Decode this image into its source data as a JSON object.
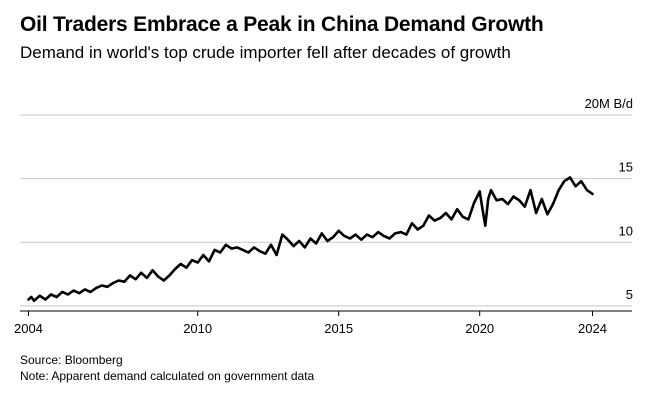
{
  "header": {
    "title": "Oil Traders Embrace a Peak in China Demand Growth",
    "subtitle": "Demand in world's top crude importer fell after decades of growth"
  },
  "footer": {
    "source": "Source: Bloomberg",
    "note": "Note: Apparent demand calculated on government data"
  },
  "chart_data": {
    "type": "line",
    "title": "Oil Traders Embrace a Peak in China Demand Growth",
    "subtitle": "Demand in world's top crude importer fell after decades of growth",
    "xlabel": "",
    "ylabel": "",
    "unit_label": "20M B/d",
    "xlim": [
      2003.7,
      2025.4
    ],
    "ylim": [
      4.6,
      20
    ],
    "y_ticks": [
      5,
      10,
      15,
      20
    ],
    "y_tick_labels": [
      "5",
      "10",
      "15",
      "20M B/d"
    ],
    "x_ticks": [
      2004,
      2010,
      2015,
      2020,
      2024
    ],
    "x_tick_labels": [
      "2004",
      "2010",
      "2015",
      "2020",
      "2024"
    ],
    "grid": true,
    "legend": "none",
    "series": [
      {
        "color": "#000000",
        "x": [
          2004.0,
          2004.1,
          2004.2,
          2004.4,
          2004.6,
          2004.8,
          2005.0,
          2005.2,
          2005.4,
          2005.6,
          2005.8,
          2006.0,
          2006.2,
          2006.4,
          2006.6,
          2006.8,
          2007.0,
          2007.2,
          2007.4,
          2007.6,
          2007.8,
          2008.0,
          2008.2,
          2008.4,
          2008.6,
          2008.8,
          2009.0,
          2009.2,
          2009.4,
          2009.6,
          2009.8,
          2010.0,
          2010.2,
          2010.4,
          2010.6,
          2010.8,
          2011.0,
          2011.2,
          2011.4,
          2011.6,
          2011.8,
          2012.0,
          2012.2,
          2012.4,
          2012.6,
          2012.8,
          2013.0,
          2013.2,
          2013.4,
          2013.6,
          2013.8,
          2014.0,
          2014.2,
          2014.4,
          2014.6,
          2014.8,
          2015.0,
          2015.2,
          2015.4,
          2015.6,
          2015.8,
          2016.0,
          2016.2,
          2016.4,
          2016.6,
          2016.8,
          2017.0,
          2017.2,
          2017.4,
          2017.6,
          2017.8,
          2018.0,
          2018.2,
          2018.4,
          2018.6,
          2018.8,
          2019.0,
          2019.2,
          2019.4,
          2019.6,
          2019.8,
          2020.0,
          2020.1,
          2020.2,
          2020.3,
          2020.4,
          2020.5,
          2020.6,
          2020.8,
          2021.0,
          2021.2,
          2021.4,
          2021.6,
          2021.8,
          2022.0,
          2022.2,
          2022.4,
          2022.6,
          2022.8,
          2023.0,
          2023.2,
          2023.4,
          2023.6,
          2023.8,
          2024.0
        ],
        "y": [
          5.5,
          5.7,
          5.4,
          5.8,
          5.5,
          5.9,
          5.7,
          6.1,
          5.9,
          6.2,
          6.0,
          6.3,
          6.1,
          6.4,
          6.6,
          6.5,
          6.8,
          7.0,
          6.9,
          7.4,
          7.1,
          7.6,
          7.2,
          7.8,
          7.3,
          7.0,
          7.4,
          7.9,
          8.3,
          8.0,
          8.6,
          8.4,
          9.0,
          8.5,
          9.4,
          9.2,
          9.8,
          9.5,
          9.6,
          9.4,
          9.2,
          9.6,
          9.3,
          9.1,
          9.8,
          9.0,
          10.6,
          10.2,
          9.7,
          10.1,
          9.6,
          10.3,
          9.9,
          10.7,
          10.1,
          10.4,
          10.9,
          10.5,
          10.3,
          10.6,
          10.2,
          10.6,
          10.4,
          10.8,
          10.5,
          10.3,
          10.7,
          10.8,
          10.6,
          11.5,
          11.0,
          11.3,
          12.1,
          11.7,
          11.9,
          12.3,
          11.8,
          12.6,
          12.0,
          11.8,
          13.1,
          14.0,
          12.6,
          11.3,
          13.4,
          14.1,
          13.7,
          13.3,
          13.4,
          13.0,
          13.6,
          13.3,
          12.8,
          14.1,
          12.3,
          13.4,
          12.2,
          13.0,
          14.1,
          14.8,
          15.1,
          14.4,
          14.8,
          14.1,
          13.8
        ]
      }
    ]
  }
}
